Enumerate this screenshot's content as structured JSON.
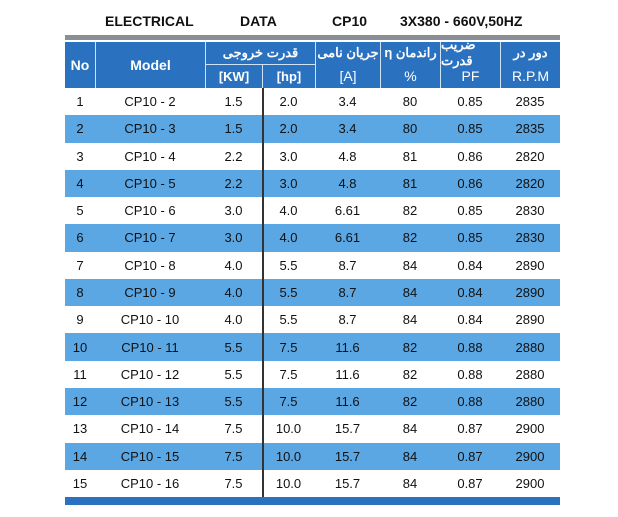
{
  "header": {
    "items": [
      "ELECTRICAL",
      "DATA",
      "CP10",
      "3X380 - 660V,50HZ"
    ]
  },
  "table": {
    "columns": {
      "no": "No",
      "model": "Model",
      "power": "قدرت خروجی",
      "kw": "[KW]",
      "hp": "[hp]",
      "current": "جریان نامی",
      "a": "[A]",
      "eff": "η راندمان",
      "pct": "%",
      "pf_title": "ضریب قدرت",
      "pf": "PF",
      "rpm_title": "دور در",
      "rpm": "R.P.M"
    },
    "rows": [
      [
        "1",
        "CP10 - 2",
        "1.5",
        "2.0",
        "3.4",
        "80",
        "0.85",
        "2835"
      ],
      [
        "2",
        "CP10 - 3",
        "1.5",
        "2.0",
        "3.4",
        "80",
        "0.85",
        "2835"
      ],
      [
        "3",
        "CP10 - 4",
        "2.2",
        "3.0",
        "4.8",
        "81",
        "0.86",
        "2820"
      ],
      [
        "4",
        "CP10 - 5",
        "2.2",
        "3.0",
        "4.8",
        "81",
        "0.86",
        "2820"
      ],
      [
        "5",
        "CP10 - 6",
        "3.0",
        "4.0",
        "6.61",
        "82",
        "0.85",
        "2830"
      ],
      [
        "6",
        "CP10 - 7",
        "3.0",
        "4.0",
        "6.61",
        "82",
        "0.85",
        "2830"
      ],
      [
        "7",
        "CP10 - 8",
        "4.0",
        "5.5",
        "8.7",
        "84",
        "0.84",
        "2890"
      ],
      [
        "8",
        "CP10 - 9",
        "4.0",
        "5.5",
        "8.7",
        "84",
        "0.84",
        "2890"
      ],
      [
        "9",
        "CP10 - 10",
        "4.0",
        "5.5",
        "8.7",
        "84",
        "0.84",
        "2890"
      ],
      [
        "10",
        "CP10 - 11",
        "5.5",
        "7.5",
        "11.6",
        "82",
        "0.88",
        "2880"
      ],
      [
        "11",
        "CP10 - 12",
        "5.5",
        "7.5",
        "11.6",
        "82",
        "0.88",
        "2880"
      ],
      [
        "12",
        "CP10 - 13",
        "5.5",
        "7.5",
        "11.6",
        "82",
        "0.88",
        "2880"
      ],
      [
        "13",
        "CP10 - 14",
        "7.5",
        "10.0",
        "15.7",
        "84",
        "0.87",
        "2900"
      ],
      [
        "14",
        "CP10 - 15",
        "7.5",
        "10.0",
        "15.7",
        "84",
        "0.87",
        "2900"
      ],
      [
        "15",
        "CP10 - 16",
        "7.5",
        "10.0",
        "15.7",
        "84",
        "0.87",
        "2900"
      ]
    ]
  }
}
